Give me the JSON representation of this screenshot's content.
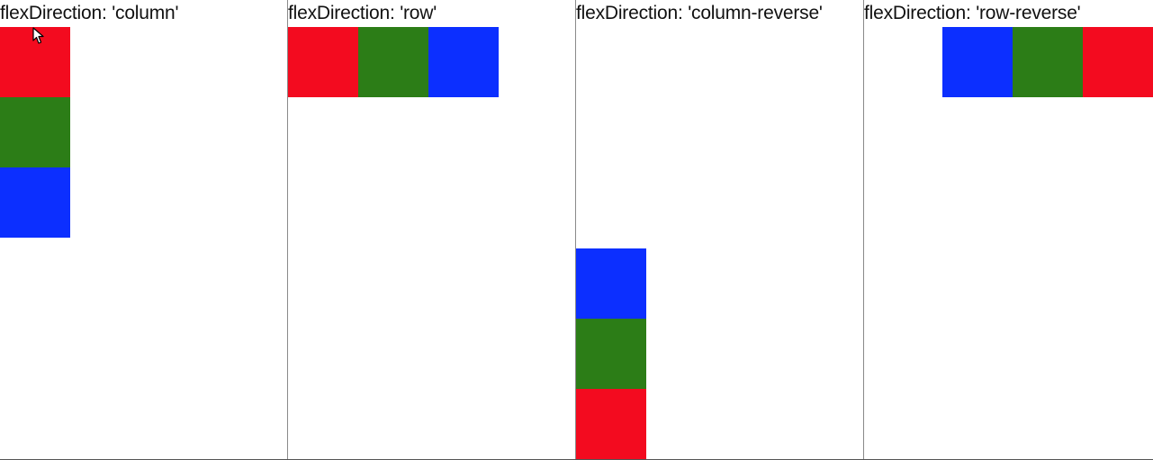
{
  "demos": [
    {
      "label": "flexDirection: 'column'",
      "direction": "column"
    },
    {
      "label": "flexDirection: 'row'",
      "direction": "row"
    },
    {
      "label": "flexDirection: 'column-reverse'",
      "direction": "column-reverse"
    },
    {
      "label": "flexDirection: 'row-reverse'",
      "direction": "row-reverse"
    }
  ],
  "boxes": [
    {
      "name": "red",
      "color": "#f30b1f"
    },
    {
      "name": "green",
      "color": "#2c7d17"
    },
    {
      "name": "blue",
      "color": "#0c2fff"
    }
  ],
  "cursor": {
    "icon": "mouse-pointer-icon"
  }
}
